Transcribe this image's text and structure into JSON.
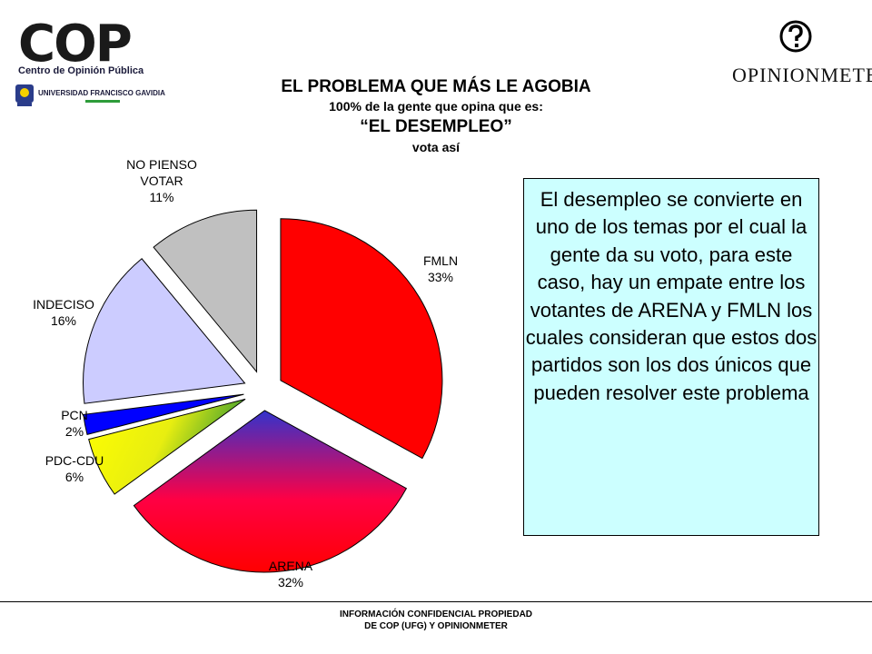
{
  "logos": {
    "cop": {
      "name": "COP",
      "subtitle": "Centro de Opinión Pública",
      "university": "UNIVERSIDAD FRANCISCO GAVIDIA"
    },
    "opinionmeter": {
      "name": "OPINIONMETER"
    }
  },
  "title": {
    "main": "EL PROBLEMA QUE MÁS LE AGOBIA",
    "line2": "100% de la gente que opina que es:",
    "line3": "“EL DESEMPLEO”",
    "line4": "vota así"
  },
  "note": {
    "text": "El desempleo se convierte en uno de los temas por el cual la gente da su voto, para este caso, hay un empate entre los votantes de ARENA y FMLN los cuales consideran que estos dos partidos son los dos únicos que pueden resolver este problema"
  },
  "footer": {
    "line1": "INFORMACIÓN CONFIDENCIAL PROPIEDAD",
    "line2": "DE COP (UFG) Y OPINIONMETER"
  },
  "chart_data": {
    "type": "pie",
    "title": "EL PROBLEMA QUE MÁS LE AGOBIA",
    "exploded": true,
    "slices": [
      {
        "label": "FMLN",
        "value": 33,
        "pct_label": "33%",
        "color": "#ff0000"
      },
      {
        "label": "ARENA",
        "value": 32,
        "pct_label": "32%",
        "color": "#ff0033",
        "gradient_to": "#3333cc"
      },
      {
        "label": "PDC-CDU",
        "value": 6,
        "pct_label": "6%",
        "color": "#ffff00",
        "gradient_to": "#339933"
      },
      {
        "label": "PCN",
        "value": 2,
        "pct_label": "2%",
        "color": "#0000ff"
      },
      {
        "label": "INDECISO",
        "value": 16,
        "pct_label": "16%",
        "color": "#ccccff"
      },
      {
        "label": "NO PIENSO VOTAR",
        "label_lines": [
          "NO PIENSO",
          "VOTAR"
        ],
        "value": 11,
        "pct_label": "11%",
        "color": "#c0c0c0"
      }
    ]
  }
}
